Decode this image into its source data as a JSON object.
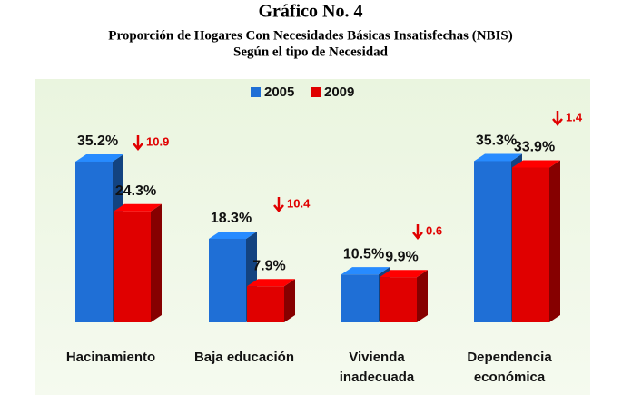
{
  "chart_data": {
    "type": "bar3d",
    "title": "Gráfico No. 4",
    "subtitle": [
      "Proporción de Hogares Con Necesidades Básicas Insatisfechas (NBIS)",
      "Según el tipo de Necesidad"
    ],
    "categories": [
      "Hacinamiento",
      "Baja educación",
      "Vivienda inadecuada",
      "Dependencia económica"
    ],
    "series": [
      {
        "name": "2005",
        "color": "#1f6fd6",
        "values": [
          35.2,
          18.3,
          10.5,
          35.3
        ],
        "value_labels": [
          "35.2%",
          "18.3%",
          "10.5%",
          "35.3%"
        ]
      },
      {
        "name": "2009",
        "color": "#e00000",
        "values": [
          24.3,
          7.9,
          9.9,
          33.9
        ],
        "value_labels": [
          "24.3%",
          "7.9%",
          "9.9%",
          "33.9%"
        ]
      }
    ],
    "changes": [
      10.9,
      10.4,
      0.6,
      1.4
    ],
    "change_color": "#e00000",
    "legend": "top"
  }
}
